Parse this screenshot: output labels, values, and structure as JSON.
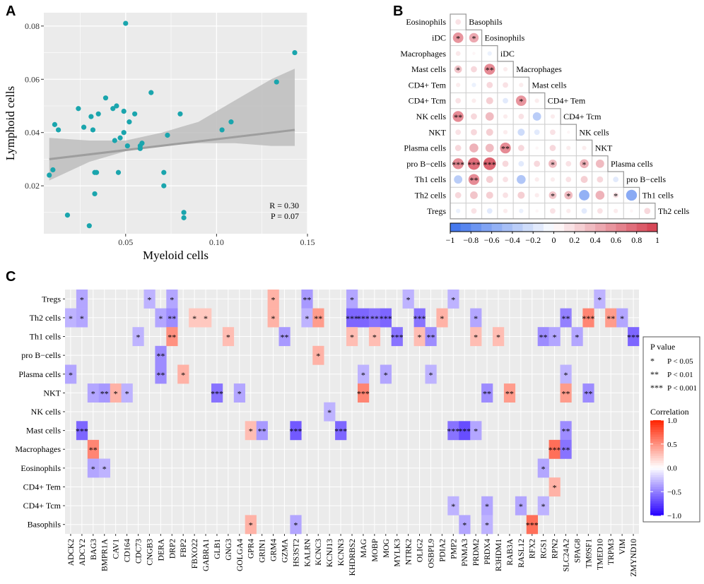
{
  "panels": {
    "a": "A",
    "b": "B",
    "c": "C"
  },
  "colors": {
    "scatter_point": "#1aa5ad",
    "panel_bg": "#ebebeb",
    "grid": "#ffffff",
    "band": "#bdbdbd",
    "fit_line": "#9e9e9e",
    "neg": "#3333ff",
    "pos": "#ff2a1a"
  },
  "scatter": {
    "chart_data": {
      "type": "scatter",
      "xlabel": "Myeloid cells",
      "ylabel": "Lymphoid cells",
      "xlim": [
        0.005,
        0.15
      ],
      "ylim": [
        0.002,
        0.085
      ],
      "xticks": [
        "0.05",
        "0.10",
        "0.15"
      ],
      "xtick_values": [
        0.05,
        0.1,
        0.15
      ],
      "yticks": [
        "0.02",
        "0.04",
        "0.06",
        "0.08"
      ],
      "ytick_values": [
        0.02,
        0.04,
        0.06,
        0.08
      ],
      "points": [
        [
          0.008,
          0.024
        ],
        [
          0.01,
          0.026
        ],
        [
          0.011,
          0.043
        ],
        [
          0.013,
          0.041
        ],
        [
          0.018,
          0.009
        ],
        [
          0.024,
          0.049
        ],
        [
          0.027,
          0.042
        ],
        [
          0.03,
          0.005
        ],
        [
          0.031,
          0.046
        ],
        [
          0.032,
          0.041
        ],
        [
          0.033,
          0.017
        ],
        [
          0.033,
          0.025
        ],
        [
          0.034,
          0.025
        ],
        [
          0.035,
          0.047
        ],
        [
          0.039,
          0.053
        ],
        [
          0.043,
          0.049
        ],
        [
          0.044,
          0.037
        ],
        [
          0.045,
          0.05
        ],
        [
          0.046,
          0.025
        ],
        [
          0.047,
          0.038
        ],
        [
          0.049,
          0.04
        ],
        [
          0.049,
          0.048
        ],
        [
          0.05,
          0.081
        ],
        [
          0.051,
          0.035
        ],
        [
          0.052,
          0.044
        ],
        [
          0.055,
          0.047
        ],
        [
          0.058,
          0.034
        ],
        [
          0.058,
          0.035
        ],
        [
          0.059,
          0.036
        ],
        [
          0.064,
          0.055
        ],
        [
          0.071,
          0.025
        ],
        [
          0.071,
          0.02
        ],
        [
          0.073,
          0.039
        ],
        [
          0.08,
          0.047
        ],
        [
          0.082,
          0.01
        ],
        [
          0.082,
          0.008
        ],
        [
          0.103,
          0.041
        ],
        [
          0.108,
          0.044
        ],
        [
          0.133,
          0.059
        ],
        [
          0.143,
          0.07
        ]
      ],
      "fit": {
        "x": [
          0.008,
          0.143
        ],
        "y": [
          0.03,
          0.041
        ]
      },
      "band": {
        "x": [
          0.008,
          0.03,
          0.05,
          0.07,
          0.09,
          0.11,
          0.13,
          0.143
        ],
        "lower": [
          0.022,
          0.029,
          0.033,
          0.035,
          0.036,
          0.036,
          0.035,
          0.035
        ],
        "upper": [
          0.038,
          0.037,
          0.037,
          0.04,
          0.044,
          0.052,
          0.06,
          0.064
        ]
      },
      "stats": [
        "R = 0.30",
        "P = 0.07"
      ]
    }
  },
  "corrplot": {
    "chart_data": {
      "type": "heatmap",
      "style": "lower-triangle circles",
      "labels": [
        "Basophils",
        "Eosinophils",
        "iDC",
        "Macrophages",
        "Mast cells",
        "CD4+ Tem",
        "CD4+ Tcm",
        "NK cells",
        "NKT",
        "Plasma cells",
        "pro B−cells",
        "Th1 cells",
        "Th2 cells",
        "Tregs"
      ],
      "row_labels": [
        "Eosinophils",
        "iDC",
        "Macrophages",
        "Mast cells",
        "CD4+ Tem",
        "CD4+ Tcm",
        "NK cells",
        "NKT",
        "Plasma cells",
        "pro B−cells",
        "Th1 cells",
        "Th2 cells",
        "Tregs"
      ],
      "diag_labels": [
        "Basophils",
        "Eosinophils",
        "iDC",
        "Macrophages",
        "Mast cells",
        "CD4+ Tem",
        "CD4+ Tcm",
        "NK cells",
        "NKT",
        "Plasma cells",
        "pro B−cells",
        "Th1 cells",
        "Th2 cells"
      ],
      "colorbar_ticks": [
        "−1",
        "−0.8",
        "−0.6",
        "−0.4",
        "−0.2",
        "0",
        "0.2",
        "0.4",
        "0.6",
        "0.8",
        "1"
      ],
      "colorbar_values": [
        -1,
        -0.8,
        -0.6,
        -0.4,
        -0.2,
        0,
        0.2,
        0.4,
        0.6,
        0.8,
        1
      ],
      "r": [
        [
          0.15
        ],
        [
          0.55,
          0.45
        ],
        [
          0.12,
          0.05,
          -0.1
        ],
        [
          0.3,
          0.2,
          0.6,
          0.1
        ],
        [
          0.1,
          -0.1,
          0.2,
          0.15,
          0.1
        ],
        [
          0.15,
          0.1,
          0.25,
          -0.15,
          0.55,
          0.1
        ],
        [
          0.6,
          0.2,
          0.35,
          0.1,
          0.15,
          -0.35,
          0.1
        ],
        [
          0.15,
          0.2,
          0.25,
          0.1,
          -0.25,
          -0.15,
          0.15,
          0.05
        ],
        [
          0.2,
          0.4,
          0.35,
          0.6,
          0.2,
          0.05,
          0.2,
          0.1,
          0.1
        ],
        [
          0.6,
          0.75,
          0.8,
          0.2,
          -0.15,
          0.2,
          0.35,
          0.15,
          0.4,
          0.35
        ],
        [
          -0.35,
          0.6,
          0.25,
          0.15,
          -0.4,
          0.1,
          0.1,
          0.15,
          0.25,
          0.2,
          -0.15
        ],
        [
          0.2,
          0.3,
          0.25,
          0.15,
          0.25,
          0.1,
          0.3,
          0.35,
          -0.55,
          0.4,
          0.15,
          -0.6
        ],
        [
          -0.1,
          0.15,
          -0.15,
          0.1,
          -0.1,
          0.05,
          0.15,
          0.1,
          -0.15,
          0.15,
          0.1,
          0.05,
          0.2
        ]
      ],
      "sig": [
        [
          ""
        ],
        [
          "*",
          "*"
        ],
        [
          "",
          "",
          ""
        ],
        [
          "*",
          "",
          "**",
          ""
        ],
        [
          "",
          "",
          "",
          "",
          ""
        ],
        [
          "",
          "",
          "",
          "",
          "*",
          ""
        ],
        [
          "**",
          "",
          "",
          "",
          "",
          "",
          ""
        ],
        [
          "",
          "",
          "",
          "",
          "",
          "",
          "",
          ""
        ],
        [
          "",
          "",
          "",
          "**",
          "",
          "",
          "",
          "",
          ""
        ],
        [
          "***",
          "***",
          "***",
          "",
          "",
          "",
          "*",
          "",
          "*",
          ""
        ],
        [
          "",
          "**",
          "",
          "",
          "",
          "",
          "",
          "",
          "",
          "",
          ""
        ],
        [
          "",
          "",
          "",
          "",
          "",
          "",
          "*",
          "*",
          "",
          "",
          "*",
          ""
        ],
        [
          "",
          "",
          "",
          "",
          "",
          "",
          "",
          "",
          "",
          "",
          "",
          "",
          ""
        ]
      ]
    }
  },
  "heatmap": {
    "chart_data": {
      "type": "heatmap",
      "rows": [
        "Tregs",
        "Th2 cells",
        "Th1 cells",
        "pro B−cells",
        "Plasma cells",
        "NKT",
        "NK cells",
        "Mast cells",
        "Macrophages",
        "Eosinophils",
        "CD4+ Tem",
        "CD4+ Tcm",
        "Basophils"
      ],
      "genes": [
        "ADCK2",
        "ADCY2",
        "BAG3",
        "BMPR1A",
        "CAV1",
        "CD164",
        "CDC73",
        "CNGB3",
        "DERA",
        "DRP2",
        "FBP2",
        "FBXO22",
        "GABRA1",
        "GLB1",
        "GNG3",
        "GOLGA4",
        "GPR4",
        "GRIN1",
        "GRM4",
        "GZMA",
        "HS3ST2",
        "KALRN",
        "KCNC3",
        "KCNJ13",
        "KCNN3",
        "KHDRBS2",
        "MAG",
        "MOBP",
        "MOG",
        "MYLK3",
        "NTRK2",
        "OLIG2",
        "OSBPL9",
        "PDIA2",
        "PMP2",
        "PNMA3",
        "PRDM2",
        "PRDX4",
        "R3HDM1",
        "RAB3A",
        "RASL12",
        "RFX2",
        "RGS1",
        "RPN2",
        "SLC24A2",
        "SPAG8",
        "TM9SF1",
        "TMED10",
        "TRPM3",
        "VIM",
        "ZMYND10"
      ],
      "cells": [
        [
          "Tregs",
          "ADCY2",
          -0.35,
          "*"
        ],
        [
          "Tregs",
          "CNGB3",
          -0.3,
          "*"
        ],
        [
          "Tregs",
          "DRP2",
          -0.35,
          "*"
        ],
        [
          "Tregs",
          "GRM4",
          0.35,
          "*"
        ],
        [
          "Tregs",
          "KALRN",
          -0.4,
          "**"
        ],
        [
          "Tregs",
          "KHDRBS2",
          -0.35,
          "*"
        ],
        [
          "Tregs",
          "NTRK2",
          -0.3,
          "*"
        ],
        [
          "Tregs",
          "PMP2",
          -0.3,
          "*"
        ],
        [
          "Tregs",
          "TMED10",
          -0.3,
          "*"
        ],
        [
          "Th2 cells",
          "ADCK2",
          -0.3,
          "*"
        ],
        [
          "Th2 cells",
          "ADCY2",
          -0.35,
          "*"
        ],
        [
          "Th2 cells",
          "DERA",
          -0.35,
          "*"
        ],
        [
          "Th2 cells",
          "DRP2",
          -0.45,
          "**"
        ],
        [
          "Th2 cells",
          "FBXO22",
          0.25,
          "*"
        ],
        [
          "Th2 cells",
          "GABRA1",
          0.25,
          "*"
        ],
        [
          "Th2 cells",
          "GRM4",
          0.35,
          "*"
        ],
        [
          "Th2 cells",
          "KALRN",
          -0.3,
          "*"
        ],
        [
          "Th2 cells",
          "KCNC3",
          0.45,
          "**"
        ],
        [
          "Th2 cells",
          "KHDRBS2",
          -0.6,
          "***"
        ],
        [
          "Th2 cells",
          "MAG",
          -0.6,
          "***"
        ],
        [
          "Th2 cells",
          "MOBP",
          -0.55,
          "**"
        ],
        [
          "Th2 cells",
          "MOG",
          -0.6,
          "***"
        ],
        [
          "Th2 cells",
          "OLIG2",
          -0.55,
          "***"
        ],
        [
          "Th2 cells",
          "PDIA2",
          0.35,
          "*"
        ],
        [
          "Th2 cells",
          "PRDM2",
          -0.35,
          "*"
        ],
        [
          "Th2 cells",
          "SLC24A2",
          -0.5,
          "**"
        ],
        [
          "Th2 cells",
          "TM9SF1",
          0.55,
          "***"
        ],
        [
          "Th2 cells",
          "TRPM3",
          0.45,
          "**"
        ],
        [
          "Th2 cells",
          "VIM",
          -0.35,
          "*"
        ],
        [
          "Th1 cells",
          "CDC73",
          -0.3,
          "*"
        ],
        [
          "Th1 cells",
          "DRP2",
          0.5,
          "**"
        ],
        [
          "Th1 cells",
          "GNG3",
          0.3,
          "*"
        ],
        [
          "Th1 cells",
          "GZMA",
          -0.4,
          "**"
        ],
        [
          "Th1 cells",
          "KHDRBS2",
          0.3,
          "*"
        ],
        [
          "Th1 cells",
          "MOBP",
          0.3,
          "*"
        ],
        [
          "Th1 cells",
          "MYLK3",
          -0.55,
          "***"
        ],
        [
          "Th1 cells",
          "OLIG2",
          0.3,
          "*"
        ],
        [
          "Th1 cells",
          "OSBPL9",
          -0.45,
          "**"
        ],
        [
          "Th1 cells",
          "PRDM2",
          0.3,
          "*"
        ],
        [
          "Th1 cells",
          "R3HDM1",
          0.3,
          "*"
        ],
        [
          "Th1 cells",
          "RGS1",
          -0.45,
          "**"
        ],
        [
          "Th1 cells",
          "RPN2",
          -0.35,
          "*"
        ],
        [
          "Th1 cells",
          "SPAG8",
          -0.35,
          "*"
        ],
        [
          "Th1 cells",
          "ZMYND10",
          -0.6,
          "***"
        ],
        [
          "pro B−cells",
          "DERA",
          -0.45,
          "**"
        ],
        [
          "pro B−cells",
          "KCNC3",
          0.35,
          "*"
        ],
        [
          "Plasma cells",
          "ADCK2",
          -0.35,
          "*"
        ],
        [
          "Plasma cells",
          "DERA",
          -0.45,
          "**"
        ],
        [
          "Plasma cells",
          "FBP2",
          0.35,
          "*"
        ],
        [
          "Plasma cells",
          "MAG",
          -0.3,
          "*"
        ],
        [
          "Plasma cells",
          "MOG",
          -0.35,
          "*"
        ],
        [
          "Plasma cells",
          "OSBPL9",
          -0.3,
          "*"
        ],
        [
          "Plasma cells",
          "SLC24A2",
          -0.3,
          "*"
        ],
        [
          "NKT",
          "BAG3",
          -0.35,
          "*"
        ],
        [
          "NKT",
          "BMPR1A",
          -0.4,
          "**"
        ],
        [
          "NKT",
          "CAV1",
          0.35,
          "*"
        ],
        [
          "NKT",
          "CD164",
          -0.3,
          "*"
        ],
        [
          "NKT",
          "GLB1",
          -0.55,
          "***"
        ],
        [
          "NKT",
          "GOLGA4",
          -0.35,
          "*"
        ],
        [
          "NKT",
          "MAG",
          0.55,
          "***"
        ],
        [
          "NKT",
          "PRDX4",
          -0.45,
          "**"
        ],
        [
          "NKT",
          "RAB3A",
          0.45,
          "**"
        ],
        [
          "NKT",
          "SLC24A2",
          0.45,
          "**"
        ],
        [
          "NKT",
          "TM9SF1",
          -0.45,
          "**"
        ],
        [
          "NK cells",
          "KCNJ13",
          -0.3,
          "*"
        ],
        [
          "Mast cells",
          "ADCY2",
          -0.6,
          "***"
        ],
        [
          "Mast cells",
          "GPR4",
          0.3,
          "*"
        ],
        [
          "Mast cells",
          "GRIN1",
          -0.4,
          "**"
        ],
        [
          "Mast cells",
          "HS3ST2",
          -0.65,
          "***"
        ],
        [
          "Mast cells",
          "KCNN3",
          -0.6,
          "***"
        ],
        [
          "Mast cells",
          "PMP2",
          -0.55,
          "***"
        ],
        [
          "Mast cells",
          "PNMA3",
          -0.7,
          "***"
        ],
        [
          "Mast cells",
          "PRDM2",
          -0.35,
          "*"
        ],
        [
          "Mast cells",
          "SLC24A2",
          -0.45,
          "**"
        ],
        [
          "Macrophages",
          "BAG3",
          0.55,
          "**"
        ],
        [
          "Macrophages",
          "RPN2",
          0.65,
          "***"
        ],
        [
          "Macrophages",
          "SLC24A2",
          -0.55,
          "**"
        ],
        [
          "Eosinophils",
          "BAG3",
          -0.35,
          "*"
        ],
        [
          "Eosinophils",
          "BMPR1A",
          -0.3,
          "*"
        ],
        [
          "Eosinophils",
          "RGS1",
          -0.35,
          "*"
        ],
        [
          "CD4+ Tem",
          "RPN2",
          0.35,
          "*"
        ],
        [
          "CD4+ Tcm",
          "PMP2",
          -0.3,
          "*"
        ],
        [
          "CD4+ Tcm",
          "PRDX4",
          -0.35,
          "*"
        ],
        [
          "CD4+ Tcm",
          "RASL12",
          -0.35,
          "*"
        ],
        [
          "CD4+ Tcm",
          "RGS1",
          -0.3,
          "*"
        ],
        [
          "Basophils",
          "GPR4",
          0.35,
          "*"
        ],
        [
          "Basophils",
          "HS3ST2",
          -0.35,
          "*"
        ],
        [
          "Basophils",
          "PNMA3",
          -0.35,
          "*"
        ],
        [
          "Basophils",
          "PRDX4",
          -0.3,
          "*"
        ],
        [
          "Basophils",
          "RFX2",
          0.65,
          "***"
        ]
      ]
    },
    "legend": {
      "pvalue_title": "P value",
      "items": [
        {
          "symbol": "*",
          "text": "P < 0.05"
        },
        {
          "symbol": "**",
          "text": "P < 0.01"
        },
        {
          "symbol": "***",
          "text": "P < 0.001"
        }
      ],
      "corr_title": "Correlation",
      "scale_labels": [
        "1.0",
        "0.5",
        "0.0",
        "−0.5",
        "−1.0"
      ],
      "scale_values": [
        1,
        0.5,
        0,
        -0.5,
        -1
      ]
    }
  }
}
